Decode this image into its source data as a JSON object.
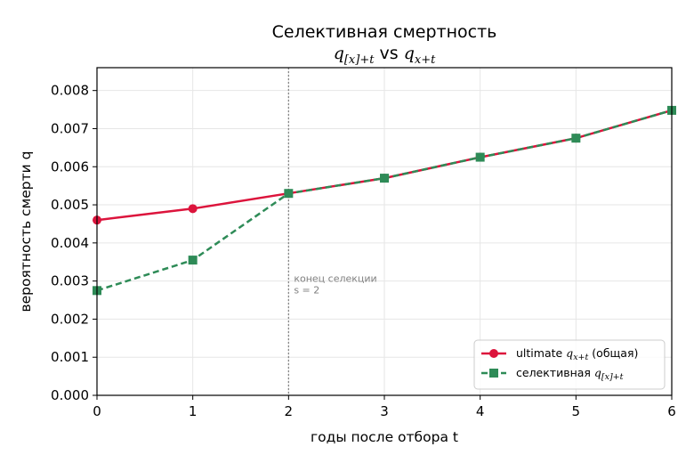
{
  "chart_data": {
    "type": "line",
    "title": "Селективная смертность",
    "subtitle": {
      "q1": "q",
      "sub1": "[x]+t",
      "vs": " vs ",
      "q2": "q",
      "sub2": "x+t"
    },
    "xlabel": "годы после отбора t",
    "ylabel": "вероятность смерти q",
    "xlim": [
      0,
      6
    ],
    "ylim": [
      0,
      0.0086
    ],
    "xticks": [
      0,
      1,
      2,
      3,
      4,
      5,
      6
    ],
    "yticks": [
      0.0,
      0.001,
      0.002,
      0.003,
      0.004,
      0.005,
      0.006,
      0.007,
      0.008
    ],
    "ytick_labels": [
      "0.000",
      "0.001",
      "0.002",
      "0.003",
      "0.004",
      "0.005",
      "0.006",
      "0.007",
      "0.008"
    ],
    "grid": true,
    "legend_position": "lower-right",
    "x": [
      0,
      1,
      2,
      3,
      4,
      5,
      6
    ],
    "series": [
      {
        "name": "ultimate",
        "legend_prefix": "ultimate ",
        "legend_q": "q",
        "legend_sub": "x+t",
        "legend_suffix": " (общая)",
        "color": "#dc143c",
        "style": "solid",
        "marker": "circle",
        "values": [
          0.0046,
          0.0049,
          0.0053,
          0.0057,
          0.00625,
          0.00675,
          0.00748
        ]
      },
      {
        "name": "селективная",
        "legend_prefix": "селективная ",
        "legend_q": "q",
        "legend_sub": "[x]+t",
        "legend_suffix": "",
        "color": "#2e8b57",
        "style": "dashed",
        "marker": "square",
        "values": [
          0.00275,
          0.00355,
          0.0053,
          0.0057,
          0.00625,
          0.00675,
          0.00748
        ]
      }
    ],
    "vline": {
      "x": 2,
      "color": "#808080"
    },
    "annotation": {
      "line1": "конец селекции",
      "line2": "s = 2",
      "x": 2,
      "y": 0.0027
    }
  }
}
